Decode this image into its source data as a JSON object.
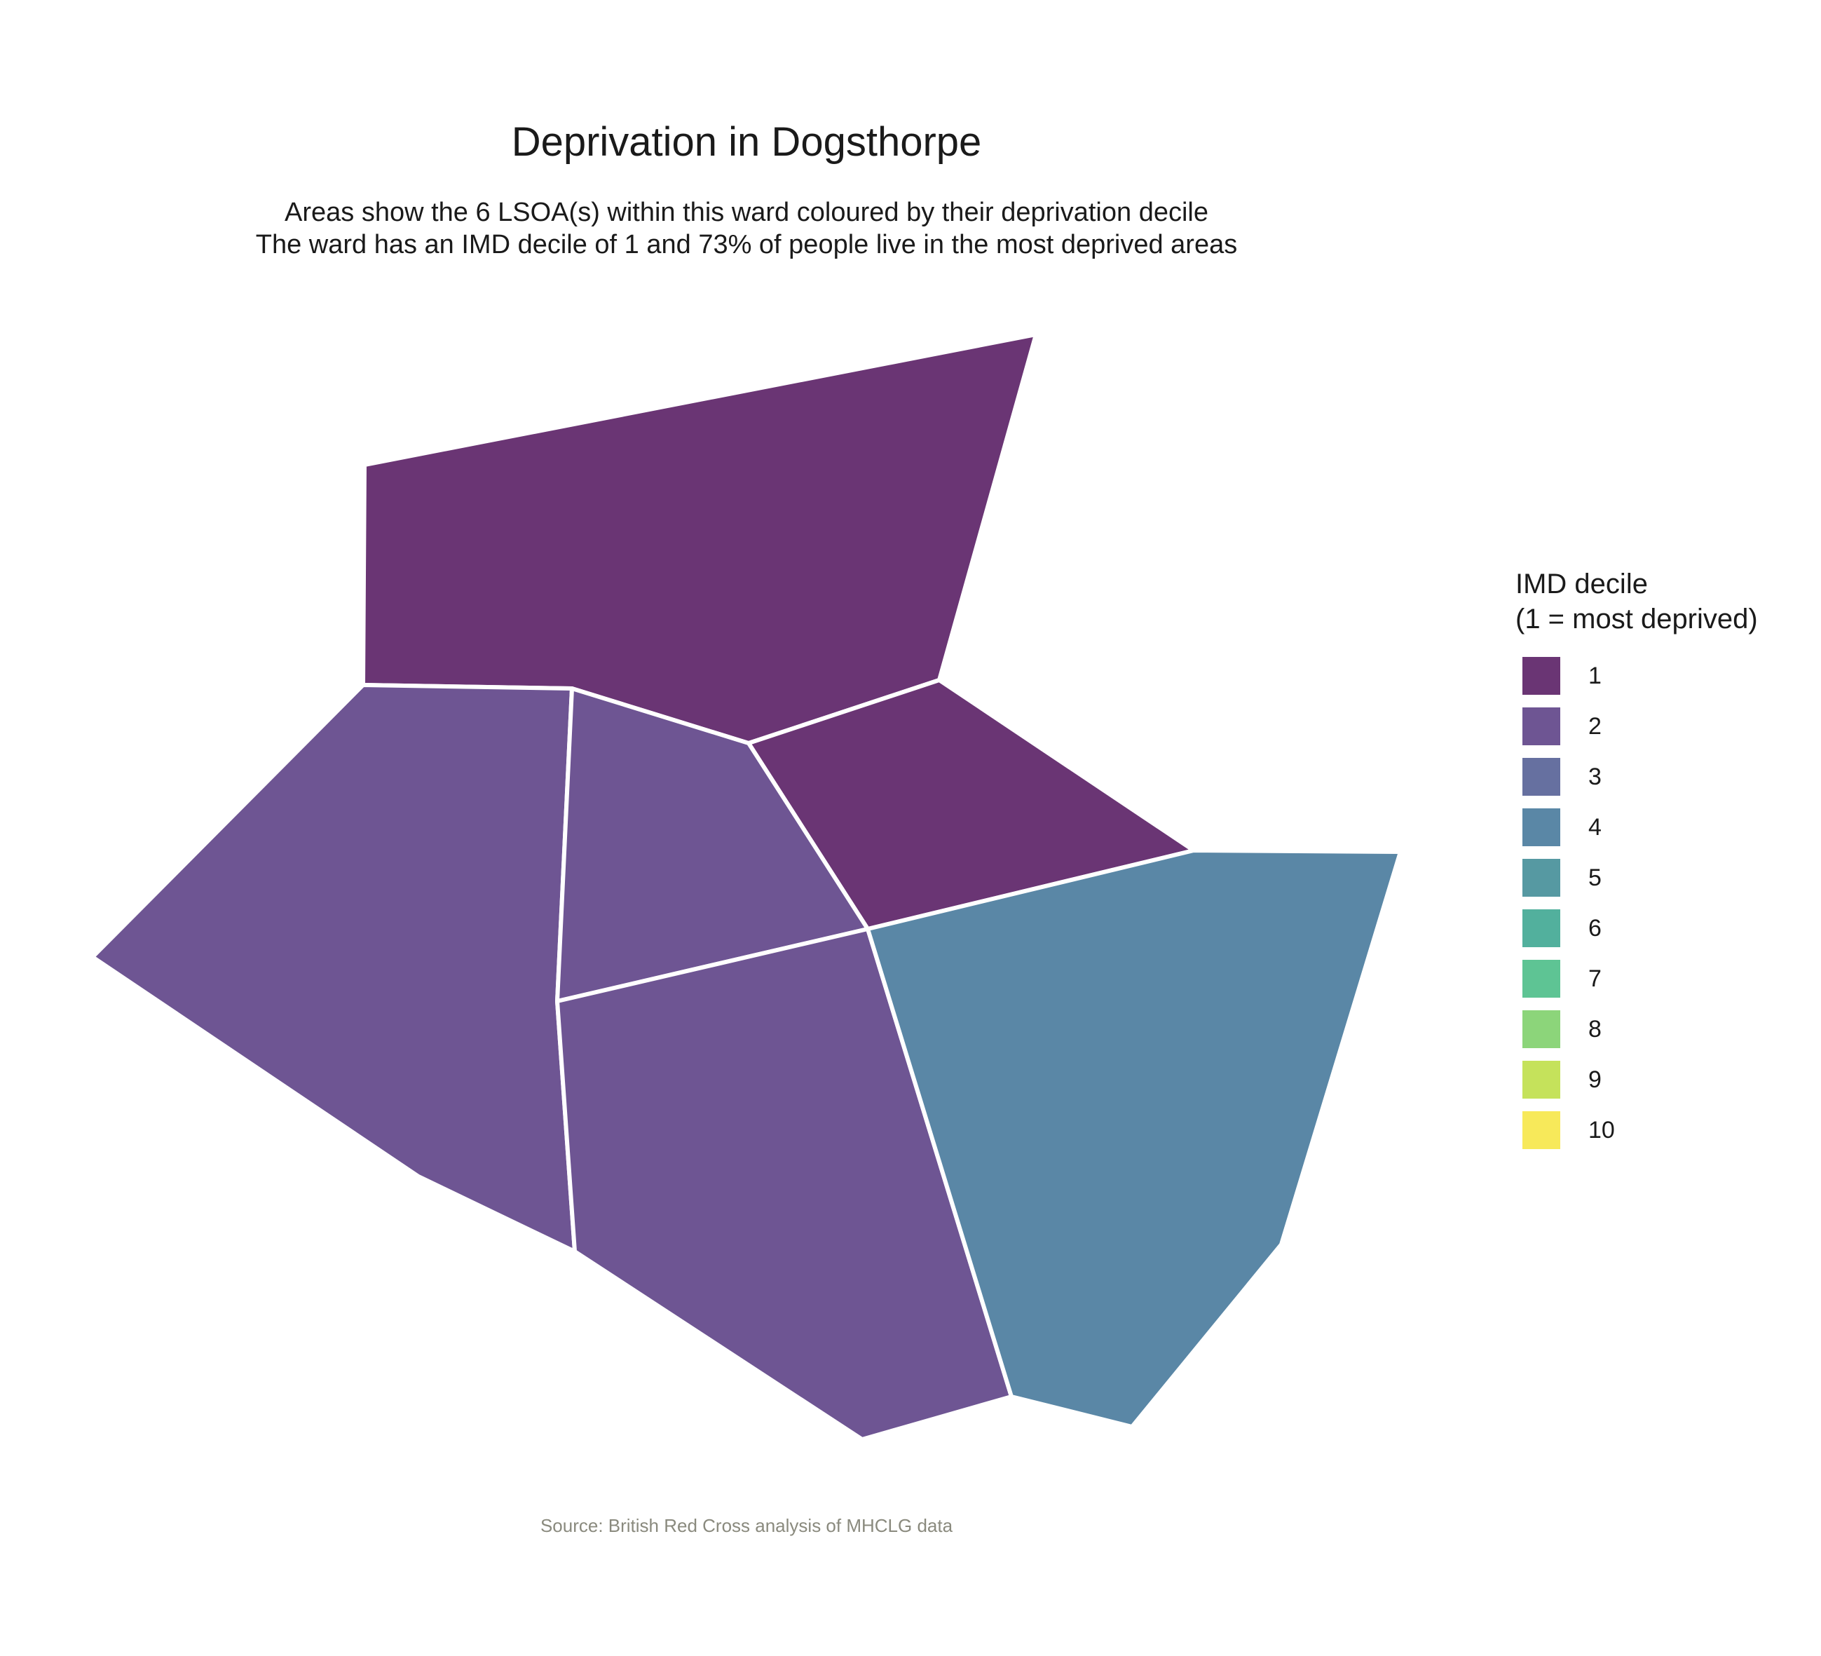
{
  "title": "Deprivation in Dogsthorpe",
  "subtitle_line1": "Areas show the 6 LSOA(s) within this ward coloured by their deprivation decile",
  "subtitle_line2": "The ward has an IMD decile of 1 and 73% of people live in the most deprived areas",
  "caption": "Source: British Red Cross analysis of MHCLG data",
  "legend": {
    "title_line1": "IMD decile",
    "title_line2": "(1 = most deprived)",
    "items": [
      {
        "label": "1",
        "color": "#6a3574"
      },
      {
        "label": "2",
        "color": "#6e5593"
      },
      {
        "label": "3",
        "color": "#6670a0"
      },
      {
        "label": "4",
        "color": "#5a87a6"
      },
      {
        "label": "5",
        "color": "#5699a2"
      },
      {
        "label": "6",
        "color": "#52b09d"
      },
      {
        "label": "7",
        "color": "#5ec494"
      },
      {
        "label": "8",
        "color": "#8cd57a"
      },
      {
        "label": "9",
        "color": "#c5e25b"
      },
      {
        "label": "10",
        "color": "#f7e95a"
      }
    ]
  },
  "chart_data": {
    "type": "choropleth",
    "ward": "Dogsthorpe",
    "lsoa_count": 6,
    "ward_imd_decile": 1,
    "percent_most_deprived": 73,
    "lsoa_deciles": [
      1,
      1,
      2,
      2,
      2,
      4
    ]
  }
}
